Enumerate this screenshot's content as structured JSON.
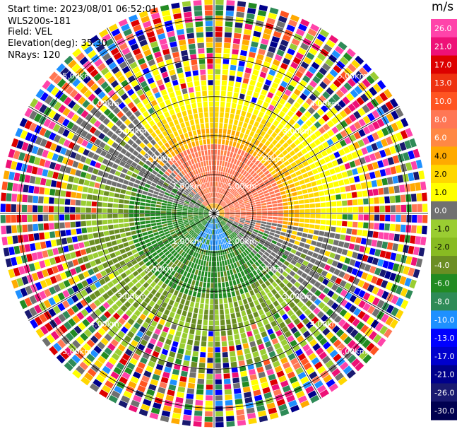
{
  "header": {
    "start_time": "Start time: 2023/08/01 06:52:01",
    "instrument": "WLS200s-181",
    "field": "Field: VEL",
    "elevation": "Elevation(deg): 35.30",
    "nrays": "NRays: 120"
  },
  "ppi": {
    "ring_labels": [
      "1.00km",
      "2.00km",
      "3.00km",
      "4.00km",
      "5.00km"
    ],
    "max_range_km": 5.5,
    "n_rays": 120
  },
  "colorbar": {
    "unit": "m/s",
    "ticks": [
      "26.0",
      "21.0",
      "17.0",
      "13.0",
      "10.0",
      "8.0",
      "6.0",
      "4.0",
      "2.0",
      "1.0",
      "0.0",
      "-1.0",
      "-2.0",
      "-4.0",
      "-6.0",
      "-8.0",
      "-10.0",
      "-13.0",
      "-17.0",
      "-21.0",
      "-26.0",
      "-30.0"
    ],
    "colors": [
      "#ff44aa",
      "#ee1177",
      "#dd0000",
      "#ee3311",
      "#ff5522",
      "#ff7755",
      "#ff8844",
      "#ffaa00",
      "#ffd700",
      "#ffff00",
      "#707070",
      "#9acd32",
      "#88bb22",
      "#6b8e23",
      "#228b22",
      "#2e8b57",
      "#1e90ff",
      "#0000ff",
      "#0000cd",
      "#00008b",
      "#191970",
      "#000050"
    ]
  }
}
